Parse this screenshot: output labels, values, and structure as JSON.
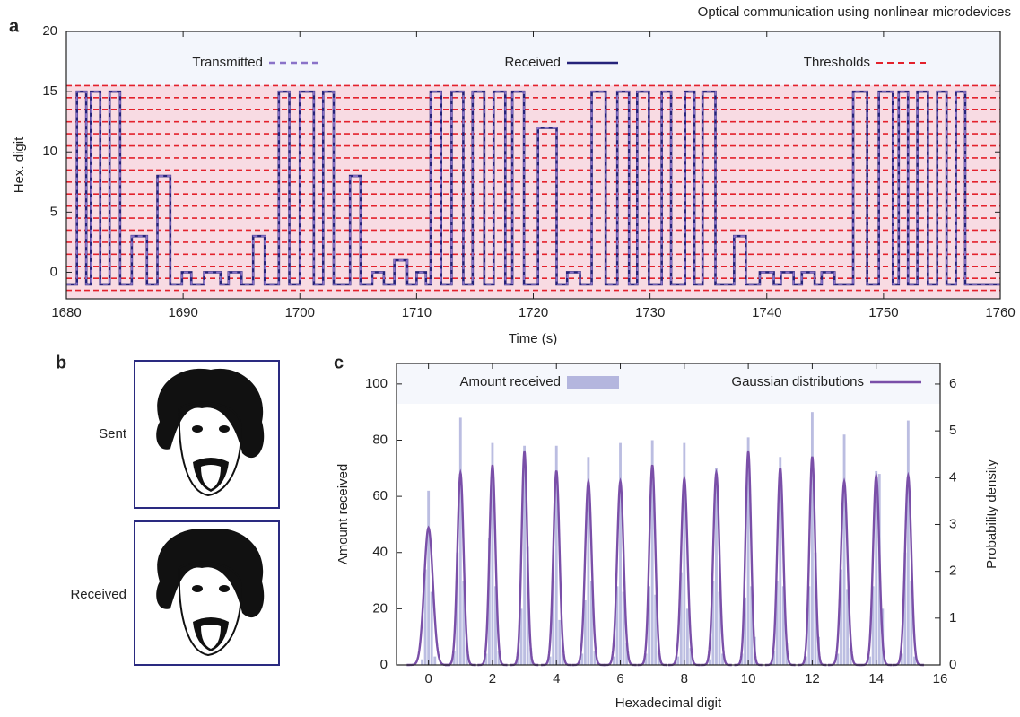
{
  "title": "Optical communication using nonlinear microdevices",
  "panel_b": {
    "label": "b",
    "captions": [
      "Sent",
      "Received"
    ]
  },
  "chart_data": [
    {
      "type": "line",
      "label": "a",
      "xlabel": "Time (s)",
      "ylabel": "Hex. digit",
      "xlim": [
        1680,
        1760
      ],
      "ylim": [
        -2.2,
        20
      ],
      "xticks": [
        1680,
        1690,
        1700,
        1710,
        1720,
        1730,
        1740,
        1750,
        1760
      ],
      "yticks": [
        0,
        5,
        10,
        15,
        20
      ],
      "x": [
        1680,
        1680.9,
        1680.9,
        1681.7,
        1681.7,
        1682.1,
        1682.1,
        1682.9,
        1682.9,
        1683.7,
        1683.7,
        1684.6,
        1684.6,
        1685.6,
        1685.6,
        1686.9,
        1686.9,
        1687.8,
        1687.8,
        1688.9,
        1688.9,
        1689.9,
        1689.9,
        1690.7,
        1690.7,
        1691.8,
        1691.8,
        1693.2,
        1693.2,
        1693.9,
        1693.9,
        1695,
        1695,
        1696,
        1696,
        1697,
        1697,
        1698.2,
        1698.2,
        1699.1,
        1699.1,
        1700,
        1700,
        1701.2,
        1701.2,
        1702,
        1702,
        1702.9,
        1702.9,
        1704.3,
        1704.3,
        1705.2,
        1705.2,
        1706.2,
        1706.2,
        1707.2,
        1707.2,
        1708.1,
        1708.1,
        1709.2,
        1709.2,
        1710,
        1710,
        1710.8,
        1710.8,
        1711.2,
        1711.2,
        1712.1,
        1712.1,
        1713,
        1713,
        1714,
        1714,
        1714.8,
        1714.8,
        1715.8,
        1715.8,
        1716.6,
        1716.6,
        1717.6,
        1717.6,
        1718.2,
        1718.2,
        1719.2,
        1719.2,
        1720.4,
        1720.4,
        1722,
        1722,
        1722.9,
        1722.9,
        1724,
        1724,
        1725,
        1725,
        1726.2,
        1726.2,
        1727.2,
        1727.2,
        1728.2,
        1728.2,
        1728.9,
        1728.9,
        1729.9,
        1729.9,
        1731,
        1731,
        1731.8,
        1731.8,
        1733,
        1733,
        1733.8,
        1733.8,
        1734.5,
        1734.5,
        1735.6,
        1735.6,
        1737.2,
        1737.2,
        1738.2,
        1738.2,
        1739.4,
        1739.4,
        1740.6,
        1740.6,
        1741.2,
        1741.2,
        1742.3,
        1742.3,
        1743,
        1743,
        1744.1,
        1744.1,
        1744.7,
        1744.7,
        1745.8,
        1745.8,
        1747.4,
        1747.4,
        1748.6,
        1748.6,
        1749.6,
        1749.6,
        1750.8,
        1750.8,
        1751.3,
        1751.3,
        1752.1,
        1752.1,
        1752.9,
        1752.9,
        1753.8,
        1753.8,
        1754.6,
        1754.6,
        1755.4,
        1755.4,
        1756.2,
        1756.2,
        1757,
        1757,
        1760
      ],
      "series": [
        {
          "name": "Transmitted",
          "color": "#8a72c8",
          "dash": true,
          "values": [
            -1,
            -1,
            15,
            15,
            -1,
            -1,
            15,
            15,
            -1,
            -1,
            15,
            15,
            -1,
            -1,
            3,
            3,
            -1,
            -1,
            8,
            8,
            -1,
            -1,
            0,
            0,
            -1,
            -1,
            0,
            0,
            -1,
            -1,
            0,
            0,
            -1,
            -1,
            3,
            3,
            -1,
            -1,
            15,
            15,
            -1,
            -1,
            15,
            15,
            -1,
            -1,
            15,
            15,
            -1,
            -1,
            8,
            8,
            -1,
            -1,
            0,
            0,
            -1,
            -1,
            1,
            1,
            -1,
            -1,
            0,
            0,
            -1,
            -1,
            15,
            15,
            -1,
            -1,
            15,
            15,
            -1,
            -1,
            15,
            15,
            -1,
            -1,
            15,
            15,
            -1,
            -1,
            15,
            15,
            -1,
            -1,
            12,
            12,
            -1,
            -1,
            0,
            0,
            -1,
            -1,
            15,
            15,
            -1,
            -1,
            15,
            15,
            -1,
            -1,
            15,
            15,
            -1,
            -1,
            15,
            15,
            -1,
            -1,
            15,
            15,
            -1,
            -1,
            15,
            15,
            -1,
            -1,
            3,
            3,
            -1,
            -1,
            0,
            0,
            -1,
            -1,
            0,
            0,
            -1,
            -1,
            0,
            0,
            -1,
            -1,
            0,
            0,
            -1,
            -1,
            15,
            15,
            -1,
            -1,
            15,
            15,
            -1,
            -1,
            15,
            15,
            -1,
            -1,
            15,
            15,
            -1,
            -1,
            15,
            15,
            -1,
            -1,
            15,
            15,
            -1,
            -1
          ]
        },
        {
          "name": "Received",
          "color": "#25237a",
          "dash": false,
          "values": [
            -1,
            -1,
            15,
            15,
            -1,
            -1,
            15,
            15,
            -1,
            -1,
            15,
            15,
            -1,
            -1,
            3,
            3,
            -1,
            -1,
            8,
            8,
            -1,
            -1,
            0,
            0,
            -1,
            -1,
            0,
            0,
            -1,
            -1,
            0,
            0,
            -1,
            -1,
            3,
            3,
            -1,
            -1,
            15,
            15,
            -1,
            -1,
            15,
            15,
            -1,
            -1,
            15,
            15,
            -1,
            -1,
            8,
            8,
            -1,
            -1,
            0,
            0,
            -1,
            -1,
            1,
            1,
            -1,
            -1,
            0,
            0,
            -1,
            -1,
            15,
            15,
            -1,
            -1,
            15,
            15,
            -1,
            -1,
            15,
            15,
            -1,
            -1,
            15,
            15,
            -1,
            -1,
            15,
            15,
            -1,
            -1,
            12,
            12,
            -1,
            -1,
            0,
            0,
            -1,
            -1,
            15,
            15,
            -1,
            -1,
            15,
            15,
            -1,
            -1,
            15,
            15,
            -1,
            -1,
            15,
            15,
            -1,
            -1,
            15,
            15,
            -1,
            -1,
            15,
            15,
            -1,
            -1,
            3,
            3,
            -1,
            -1,
            0,
            0,
            -1,
            -1,
            0,
            0,
            -1,
            -1,
            0,
            0,
            -1,
            -1,
            0,
            0,
            -1,
            -1,
            15,
            15,
            -1,
            -1,
            15,
            15,
            -1,
            -1,
            15,
            15,
            -1,
            -1,
            15,
            15,
            -1,
            -1,
            15,
            15,
            -1,
            -1,
            15,
            15,
            -1,
            -1
          ]
        }
      ],
      "thresholds": {
        "name": "Thresholds",
        "color": "#e3222c",
        "values": [
          -1.5,
          -0.5,
          0.5,
          1.5,
          2.5,
          3.5,
          4.5,
          5.5,
          6.5,
          7.5,
          8.5,
          9.5,
          10.5,
          11.5,
          12.5,
          13.5,
          14.5,
          15.5
        ]
      }
    },
    {
      "type": "bar",
      "label": "c",
      "xlabel": "Hexadecimal digit",
      "ylabel": "Amount received",
      "y2label": "Probability density",
      "xlim": [
        -1,
        16
      ],
      "ylim": [
        0,
        107.3
      ],
      "y2lim": [
        0,
        6.44
      ],
      "xticks": [
        0,
        2,
        4,
        6,
        8,
        10,
        12,
        14,
        16
      ],
      "yticks": [
        0,
        20,
        40,
        60,
        80,
        100
      ],
      "y2ticks": [
        0,
        1,
        2,
        3,
        4,
        5,
        6
      ],
      "series": [
        {
          "name": "Amount received",
          "type": "bar",
          "color": "#b4b6de",
          "x": [
            -0.2,
            -0.1,
            0,
            0.1,
            0.2,
            0.8,
            0.9,
            1,
            1.1,
            1.2,
            1.8,
            1.9,
            2,
            2.1,
            2.2,
            2.8,
            2.9,
            3,
            3.1,
            3.2,
            3.8,
            3.9,
            4,
            4.1,
            4.2,
            4.8,
            4.9,
            5,
            5.1,
            5.2,
            5.8,
            5.9,
            6,
            6.1,
            6.2,
            6.8,
            6.9,
            7,
            7.1,
            7.2,
            7.8,
            7.9,
            8,
            8.1,
            8.2,
            8.8,
            8.9,
            9,
            9.1,
            9.2,
            9.8,
            9.9,
            10,
            10.1,
            10.2,
            10.8,
            10.9,
            11,
            11.1,
            11.2,
            11.8,
            11.9,
            12,
            12.1,
            12.2,
            12.8,
            12.9,
            13,
            13.1,
            13.2,
            13.8,
            13.9,
            14,
            14.1,
            14.2,
            14.8,
            14.9,
            15,
            15.1,
            15.2
          ],
          "values": [
            2,
            34,
            62,
            26,
            3,
            5,
            40,
            88,
            30,
            6,
            4,
            45,
            79,
            28,
            5,
            3,
            20,
            78,
            42,
            6,
            3,
            30,
            78,
            16,
            4,
            4,
            23,
            74,
            30,
            5,
            3,
            28,
            79,
            26,
            8,
            4,
            28,
            80,
            25,
            5,
            3,
            33,
            79,
            20,
            6,
            2,
            30,
            70,
            26,
            4,
            4,
            24,
            81,
            28,
            10,
            5,
            30,
            74,
            28,
            8,
            3,
            28,
            90,
            40,
            10,
            4,
            34,
            82,
            27,
            6,
            3,
            28,
            69,
            68,
            20,
            4,
            40,
            87,
            30,
            3
          ]
        },
        {
          "name": "Gaussian distributions",
          "type": "gaussian",
          "axis": "y2",
          "color": "#7a4fa8",
          "x": [
            0,
            1,
            2,
            3,
            4,
            5,
            6,
            7,
            8,
            9,
            10,
            11,
            12,
            13,
            14,
            15
          ],
          "values": [
            2.93,
            4.1,
            4.27,
            4.56,
            4.15,
            3.92,
            3.92,
            4.27,
            3.98,
            4.1,
            4.56,
            4.21,
            4.45,
            3.92,
            4.04,
            4.04
          ]
        }
      ]
    }
  ]
}
